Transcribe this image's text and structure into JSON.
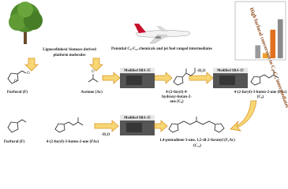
{
  "header": {
    "tree_label": [
      "Lignocellulosic biomass derived",
      "platform molecules"
    ],
    "plane_label": "Potential C₈-C₁₃ chemicals and jet fuel ranged intermediates"
  },
  "top_row": {
    "furfural": "Furfural (F)",
    "acetone": "Acetone (Ac)",
    "catalyst": "Modified SBA-15",
    "intermediate": [
      "4-(2-furyl)-4-",
      "hydroxy-butan-2-",
      "one (C₈)"
    ],
    "dehydration": "-H₂O",
    "catalyst2": "Modified SBA-15",
    "product": "4-(2-furyl)-3-buten-2-one (FAc)",
    "product_class": "(C₈)"
  },
  "bottom_row": {
    "furfural": "Furfural (F)",
    "reactant": "4-(2-furyl)-3-buten-2-one (FAc)",
    "dehydration": "-H₂O",
    "catalyst": "Modified SBA-15",
    "product": "1,4-pentadiene-3-one, 1,5-di-2-furanyl (F₂Ac)",
    "product_class": "(C₁₃)"
  },
  "inset_chart": {
    "type": "bar",
    "annotation": "High furfural conversion to C₈-C₁₃ intermediates",
    "values": [
      25,
      10,
      55,
      75
    ],
    "colors": [
      "#9a9a9a",
      "#f0a030",
      "#e07020",
      "#8a8a8a"
    ],
    "ylim": [
      0,
      100
    ]
  }
}
